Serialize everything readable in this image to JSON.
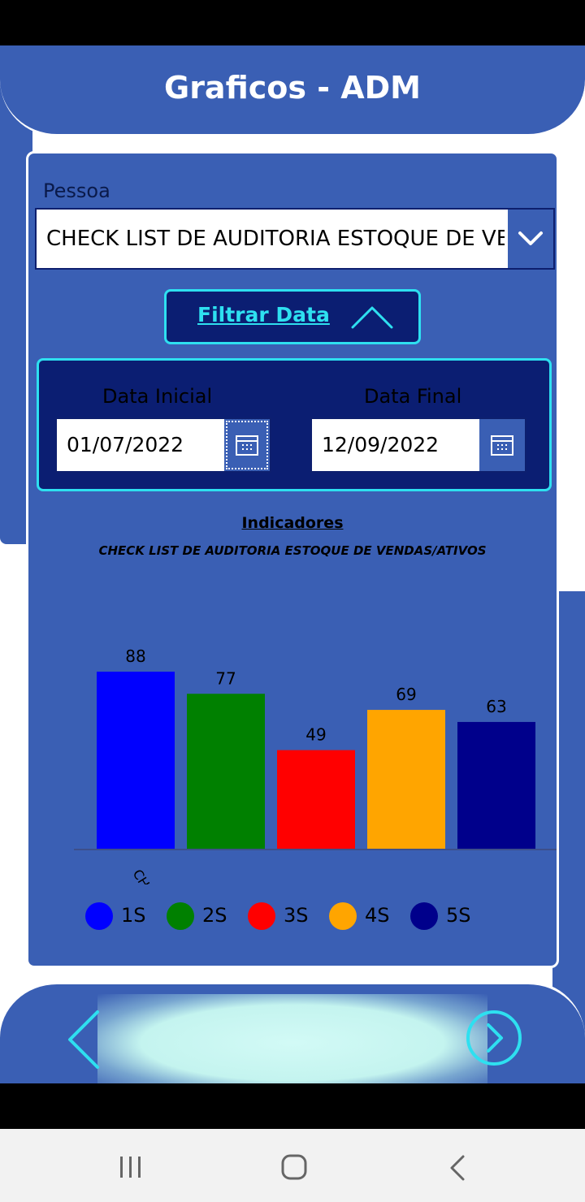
{
  "header": {
    "title": "Graficos - ADM"
  },
  "filter": {
    "pessoa_label": "Pessoa",
    "pessoa_value": "CHECK LIST DE AUDITORIA ESTOQUE DE VENDAS/ATIVOS",
    "filtrar_label": "Filtrar Data",
    "data_inicial_label": "Data Inicial",
    "data_inicial_value": "01/07/2022",
    "data_final_label": "Data Final",
    "data_final_value": "12/09/2022"
  },
  "icons": {
    "dropdown": "chevron-down-icon",
    "collapse": "chevron-up-icon",
    "calendar": "calendar-icon",
    "prev": "chevron-left-icon",
    "next": "chevron-right-circle-icon"
  },
  "colors": {
    "accent_cyan": "#2ee0f0",
    "panel_blue": "#3a5fb4",
    "dark_blue": "#0b1e72"
  },
  "chart_data": {
    "type": "bar",
    "title": "Indicadores",
    "subtitle": "CHECK LIST DE AUDITORIA ESTOQUE DE VENDAS/ATIVOS",
    "categories": [
      "CHECK ..."
    ],
    "series": [
      {
        "name": "1S",
        "values": [
          88
        ],
        "color": "#0000ff"
      },
      {
        "name": "2S",
        "values": [
          77
        ],
        "color": "#008000"
      },
      {
        "name": "3S",
        "values": [
          49
        ],
        "color": "#ff0000"
      },
      {
        "name": "4S",
        "values": [
          69
        ],
        "color": "#ffa500"
      },
      {
        "name": "5S",
        "values": [
          63
        ],
        "color": "#00008b"
      }
    ],
    "ylim": [
      0,
      88
    ],
    "grid": false,
    "legend": "bottom"
  },
  "system_nav": {
    "recents": "recents-icon",
    "home": "home-icon",
    "back": "back-icon"
  }
}
